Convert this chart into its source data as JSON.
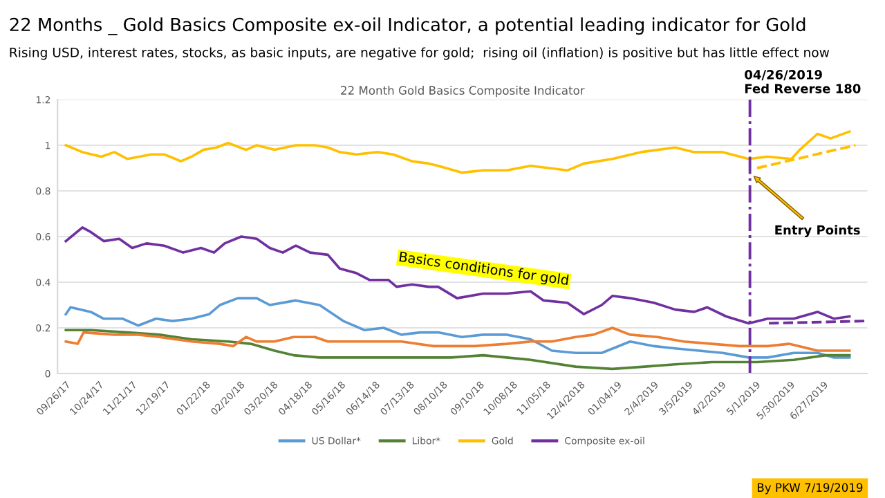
{
  "chart_data": {
    "type": "line",
    "title": "22 Months _ Gold Basics Composite ex-oil Indicator, a potential leading indicator for Gold",
    "subtitle": "Rising USD, interest rates, stocks, as basic inputs, are negative for gold;  rising oil (inflation) is positive but has little effect now",
    "xlim": [
      "2017-09-19",
      "2019-08-03"
    ],
    "ylim": [
      0,
      1.2
    ],
    "xticks": [
      {
        "value": "2017-09-26",
        "label": "09/26/17"
      },
      {
        "value": "2017-10-24",
        "label": "10/24/17"
      },
      {
        "value": "2017-11-21",
        "label": "11/21/17"
      },
      {
        "value": "2017-12-19",
        "label": "12/19/17"
      },
      {
        "value": "2018-01-22",
        "label": "01/22/18"
      },
      {
        "value": "2018-02-20",
        "label": "02/20/18"
      },
      {
        "value": "2018-03-20",
        "label": "03/20/18"
      },
      {
        "value": "2018-04-18",
        "label": "04/18/18"
      },
      {
        "value": "2018-05-16",
        "label": "05/16/18"
      },
      {
        "value": "2018-06-14",
        "label": "06/14/18"
      },
      {
        "value": "2018-07-13",
        "label": "07/13/18"
      },
      {
        "value": "2018-08-10",
        "label": "08/10/18"
      },
      {
        "value": "2018-09-10",
        "label": "09/10/18"
      },
      {
        "value": "2018-10-08",
        "label": "10/08/18"
      },
      {
        "value": "2018-11-05",
        "label": "11/05/18"
      },
      {
        "value": "2018-12-04",
        "label": "12/4/2018"
      },
      {
        "value": "2019-01-04",
        "label": "01/04/19"
      },
      {
        "value": "2019-02-04",
        "label": "2/4/2019"
      },
      {
        "value": "2019-03-05",
        "label": "3/5/2019"
      },
      {
        "value": "2019-04-02",
        "label": "4/2/2019"
      },
      {
        "value": "2019-05-01",
        "label": "5/1/2019"
      },
      {
        "value": "2019-05-30",
        "label": "5/30/2019"
      },
      {
        "value": "2019-06-27",
        "label": "6/27/2019"
      }
    ],
    "yticks": [
      0,
      0.2,
      0.4,
      0.6,
      0.8,
      1,
      1.2
    ],
    "grid": "y",
    "legend": "bottom",
    "marker": "none",
    "line_style": "solid",
    "series": [
      {
        "name": "US Dollar*",
        "color": "#5b9bd5",
        "x": [
          "2017-09-26",
          "2017-09-30",
          "2017-10-17",
          "2017-10-28",
          "2017-11-13",
          "2017-11-26",
          "2017-12-11",
          "2017-12-25",
          "2018-01-10",
          "2018-01-25",
          "2018-02-03",
          "2018-02-18",
          "2018-03-06",
          "2018-03-17",
          "2018-04-08",
          "2018-04-28",
          "2018-05-18",
          "2018-06-05",
          "2018-06-21",
          "2018-07-06",
          "2018-07-22",
          "2018-08-06",
          "2018-08-26",
          "2018-09-13",
          "2018-10-03",
          "2018-10-23",
          "2018-11-10",
          "2018-11-30",
          "2018-12-22",
          "2019-01-15",
          "2019-02-04",
          "2019-02-22",
          "2019-03-14",
          "2019-04-03",
          "2019-04-25",
          "2019-05-11",
          "2019-06-02",
          "2019-06-22",
          "2019-07-06",
          "2019-07-19"
        ],
        "values": [
          0.26,
          0.29,
          0.27,
          0.24,
          0.24,
          0.21,
          0.24,
          0.23,
          0.24,
          0.26,
          0.3,
          0.33,
          0.33,
          0.3,
          0.32,
          0.3,
          0.23,
          0.19,
          0.2,
          0.17,
          0.18,
          0.18,
          0.16,
          0.17,
          0.17,
          0.15,
          0.1,
          0.09,
          0.09,
          0.14,
          0.12,
          0.11,
          0.1,
          0.09,
          0.07,
          0.07,
          0.09,
          0.09,
          0.07,
          0.07
        ]
      },
      {
        "name": "Libor*",
        "color": "#548235",
        "x": [
          "2017-09-26",
          "2017-10-17",
          "2017-11-17",
          "2017-12-14",
          "2018-01-10",
          "2018-02-10",
          "2018-03-01",
          "2018-03-21",
          "2018-04-06",
          "2018-04-28",
          "2018-05-21",
          "2018-06-05",
          "2018-07-15",
          "2018-08-17",
          "2018-09-13",
          "2018-10-23",
          "2018-11-30",
          "2018-12-31",
          "2019-01-27",
          "2019-02-22",
          "2019-03-25",
          "2019-05-02",
          "2019-06-02",
          "2019-06-29",
          "2019-07-19"
        ],
        "values": [
          0.19,
          0.19,
          0.18,
          0.17,
          0.15,
          0.14,
          0.13,
          0.1,
          0.08,
          0.07,
          0.07,
          0.07,
          0.07,
          0.07,
          0.08,
          0.06,
          0.03,
          0.02,
          0.03,
          0.04,
          0.05,
          0.05,
          0.06,
          0.08,
          0.08
        ]
      },
      {
        "name": null,
        "color": "#ed7d31",
        "x": [
          "2017-09-26",
          "2017-10-06",
          "2017-10-11",
          "2017-11-06",
          "2017-11-26",
          "2017-12-14",
          "2018-01-10",
          "2018-02-03",
          "2018-02-14",
          "2018-02-25",
          "2018-03-06",
          "2018-03-21",
          "2018-04-06",
          "2018-04-24",
          "2018-05-05",
          "2018-06-05",
          "2018-07-06",
          "2018-08-02",
          "2018-08-17",
          "2018-09-06",
          "2018-10-03",
          "2018-10-23",
          "2018-11-10",
          "2018-11-30",
          "2018-12-15",
          "2018-12-31",
          "2019-01-15",
          "2019-02-07",
          "2019-03-01",
          "2019-03-25",
          "2019-04-17",
          "2019-05-11",
          "2019-05-29",
          "2019-06-22",
          "2019-07-19"
        ],
        "values": [
          0.14,
          0.13,
          0.18,
          0.17,
          0.17,
          0.16,
          0.14,
          0.13,
          0.12,
          0.16,
          0.14,
          0.14,
          0.16,
          0.16,
          0.14,
          0.14,
          0.14,
          0.12,
          0.12,
          0.12,
          0.13,
          0.14,
          0.14,
          0.16,
          0.17,
          0.2,
          0.17,
          0.16,
          0.14,
          0.13,
          0.12,
          0.12,
          0.13,
          0.1,
          0.1
        ]
      },
      {
        "name": "Gold",
        "color": "#ffc000",
        "x": [
          "2017-09-26",
          "2017-10-10",
          "2017-10-26",
          "2017-11-06",
          "2017-11-17",
          "2017-12-07",
          "2017-12-18",
          "2018-01-01",
          "2018-01-10",
          "2018-01-20",
          "2018-01-31",
          "2018-02-10",
          "2018-02-25",
          "2018-03-06",
          "2018-03-21",
          "2018-04-08",
          "2018-04-24",
          "2018-05-05",
          "2018-05-15",
          "2018-05-29",
          "2018-06-16",
          "2018-06-29",
          "2018-07-15",
          "2018-07-29",
          "2018-08-06",
          "2018-08-26",
          "2018-09-13",
          "2018-10-03",
          "2018-10-23",
          "2018-11-23",
          "2018-12-07",
          "2018-12-31",
          "2019-01-24",
          "2019-02-22",
          "2019-03-10",
          "2019-04-03",
          "2019-04-25",
          "2019-05-11",
          "2019-05-31",
          "2019-06-07",
          "2019-06-22",
          "2019-07-03",
          "2019-07-19"
        ],
        "values": [
          1.0,
          0.97,
          0.95,
          0.97,
          0.94,
          0.96,
          0.96,
          0.93,
          0.95,
          0.98,
          0.99,
          1.01,
          0.98,
          1.0,
          0.98,
          1.0,
          1.0,
          0.99,
          0.97,
          0.96,
          0.97,
          0.96,
          0.93,
          0.92,
          0.91,
          0.88,
          0.89,
          0.89,
          0.91,
          0.89,
          0.92,
          0.94,
          0.97,
          0.99,
          0.97,
          0.97,
          0.94,
          0.95,
          0.94,
          0.98,
          1.05,
          1.03,
          1.06
        ]
      },
      {
        "name": "Composite ex-oil",
        "color": "#7030a0",
        "x": [
          "2017-09-26",
          "2017-10-10",
          "2017-10-17",
          "2017-10-28",
          "2017-11-10",
          "2017-11-21",
          "2017-12-03",
          "2017-12-18",
          "2018-01-03",
          "2018-01-18",
          "2018-01-29",
          "2018-02-07",
          "2018-02-21",
          "2018-03-06",
          "2018-03-17",
          "2018-03-28",
          "2018-04-08",
          "2018-04-20",
          "2018-05-05",
          "2018-05-15",
          "2018-05-29",
          "2018-06-09",
          "2018-06-25",
          "2018-07-02",
          "2018-07-15",
          "2018-07-29",
          "2018-08-06",
          "2018-08-22",
          "2018-09-13",
          "2018-10-03",
          "2018-10-23",
          "2018-11-03",
          "2018-11-23",
          "2018-12-07",
          "2018-12-22",
          "2018-12-31",
          "2019-01-15",
          "2019-02-04",
          "2019-02-22",
          "2019-03-10",
          "2019-03-21",
          "2019-04-06",
          "2019-04-25",
          "2019-05-11",
          "2019-06-02",
          "2019-06-22",
          "2019-07-06",
          "2019-07-19"
        ],
        "values": [
          0.58,
          0.64,
          0.62,
          0.58,
          0.59,
          0.55,
          0.57,
          0.56,
          0.53,
          0.55,
          0.53,
          0.57,
          0.6,
          0.59,
          0.55,
          0.53,
          0.56,
          0.53,
          0.52,
          0.46,
          0.44,
          0.41,
          0.41,
          0.38,
          0.39,
          0.38,
          0.38,
          0.33,
          0.35,
          0.35,
          0.36,
          0.32,
          0.31,
          0.26,
          0.3,
          0.34,
          0.33,
          0.31,
          0.28,
          0.27,
          0.29,
          0.25,
          0.22,
          0.24,
          0.24,
          0.27,
          0.24,
          0.25
        ]
      },
      {
        "type": "line",
        "color": "#ffc000",
        "line_style": "dashed",
        "x": [
          "2019-05-02",
          "2019-07-24"
        ],
        "values": [
          0.9,
          1.0
        ]
      },
      {
        "type": "line",
        "color": "#7030a0",
        "line_style": "dashed",
        "x": [
          "2019-05-12",
          "2019-08-01"
        ],
        "values": [
          0.22,
          0.23
        ]
      }
    ],
    "ref_lines": [
      {
        "axis": "x",
        "value": "2019-04-26",
        "label": "04/26/2019\nFed Reverse 180",
        "color": "#7030a0",
        "line_style": "dashdot"
      }
    ],
    "annotations": [
      "22 Month Gold Basics Composite Indicator",
      "Basics conditions for gold",
      "Entry Points",
      "By PKW 7/19/2019"
    ]
  }
}
